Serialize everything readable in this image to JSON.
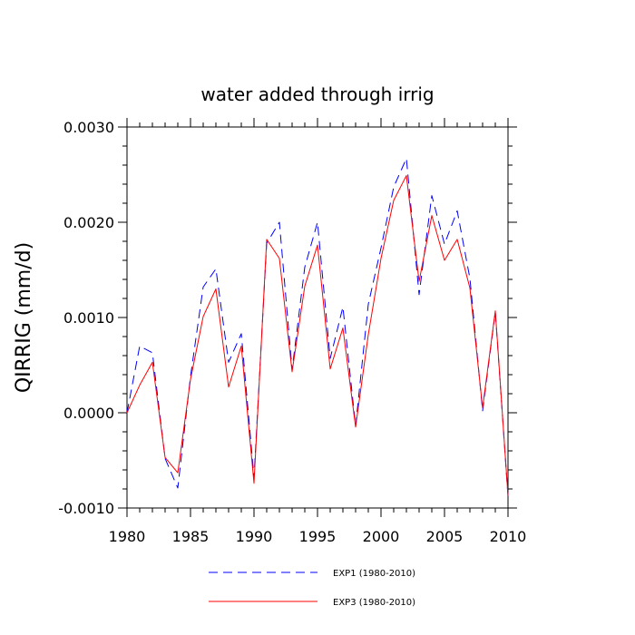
{
  "chart_data": {
    "type": "line",
    "title": "water added through irrig",
    "xlabel": "",
    "ylabel": "QIRRIG  (mm/d)",
    "xlim": [
      1980,
      2010
    ],
    "ylim": [
      -0.001,
      0.003
    ],
    "xticks": [
      1980,
      1985,
      1990,
      1995,
      2000,
      2005,
      2010
    ],
    "xtick_labels": [
      "1980",
      "1985",
      "1990",
      "1995",
      "2000",
      "2005",
      "2010"
    ],
    "yticks": [
      -0.001,
      0.0,
      0.001,
      0.002,
      0.003
    ],
    "ytick_labels": [
      "-0.0010",
      "0.0000",
      "0.0010",
      "0.0020",
      "0.0030"
    ],
    "legend_position": "bottom-center",
    "grid": false,
    "x": [
      1980,
      1981,
      1982,
      1983,
      1984,
      1985,
      1986,
      1987,
      1988,
      1989,
      1990,
      1991,
      1992,
      1993,
      1994,
      1995,
      1996,
      1997,
      1998,
      1999,
      2000,
      2001,
      2002,
      2003,
      2004,
      2005,
      2006,
      2007,
      2008,
      2009,
      2010
    ],
    "series": [
      {
        "name": "EXP1 (1980-2010)",
        "color": "#0000ff",
        "dash": "dashed",
        "values": [
          0.0,
          0.0007,
          0.00063,
          -0.00048,
          -0.00079,
          0.00038,
          0.00132,
          0.00151,
          0.00053,
          0.00083,
          -0.00068,
          0.00178,
          0.002,
          0.00045,
          0.00153,
          0.002,
          0.00057,
          0.00111,
          -0.00014,
          0.00114,
          0.00173,
          0.00237,
          0.00267,
          0.00124,
          0.00228,
          0.00177,
          0.00212,
          0.00141,
          2e-05,
          0.00106,
          -0.00088
        ]
      },
      {
        "name": "EXP3 (1980-2010)",
        "color": "#ff0000",
        "dash": "solid",
        "values": [
          0.0,
          0.00029,
          0.00053,
          -0.00047,
          -0.00063,
          0.00035,
          0.00101,
          0.0013,
          0.00027,
          0.0007,
          -0.00074,
          0.00182,
          0.00162,
          0.00043,
          0.00133,
          0.00176,
          0.00046,
          0.00089,
          -0.00015,
          0.00082,
          0.00162,
          0.00223,
          0.00249,
          0.00138,
          0.00207,
          0.0016,
          0.00182,
          0.00131,
          5e-05,
          0.00107,
          -0.00087
        ]
      }
    ]
  }
}
